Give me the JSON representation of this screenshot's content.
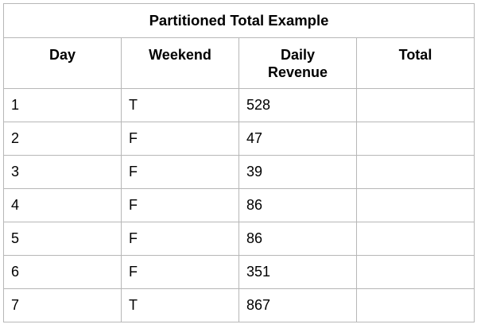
{
  "table": {
    "title": "Partitioned Total Example",
    "headers": [
      "Day",
      "Weekend",
      "Daily Revenue",
      "Total"
    ],
    "rows": [
      [
        "1",
        "T",
        "528",
        ""
      ],
      [
        "2",
        "F",
        "47",
        ""
      ],
      [
        "3",
        "F",
        "39",
        ""
      ],
      [
        "4",
        "F",
        "86",
        ""
      ],
      [
        "5",
        "F",
        "86",
        ""
      ],
      [
        "6",
        "F",
        "351",
        ""
      ],
      [
        "7",
        "T",
        "867",
        ""
      ]
    ]
  }
}
